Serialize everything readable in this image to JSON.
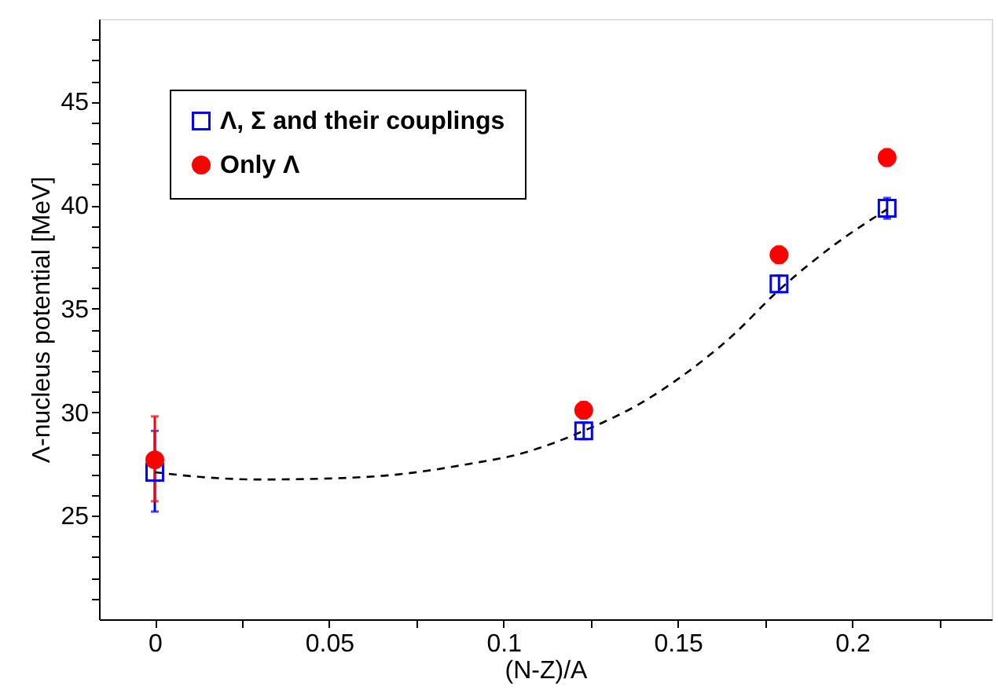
{
  "chart_data": {
    "type": "scatter",
    "xlabel": "(N-Z)/A",
    "ylabel": "Λ-nucleus potential [MeV]",
    "x": [
      0,
      0.123,
      0.179,
      0.21
    ],
    "series": [
      {
        "name": "Λ, Σ and their couplings",
        "color": "#0000ff",
        "marker": "square",
        "values": [
          27.1,
          29.1,
          36.2,
          39.85
        ],
        "errors": [
          [
            25.2,
            29.1
          ],
          0.4,
          0.4,
          0.5
        ]
      },
      {
        "name": "Only  Λ",
        "color": "#ff0000",
        "marker": "circle",
        "values": [
          27.7,
          30.1,
          37.6,
          42.3
        ],
        "errors": [
          [
            25.7,
            29.8
          ],
          0.4,
          0.4,
          0.4
        ]
      },
      {
        "type": "line",
        "color": "#000000",
        "line_style": "dashed",
        "marker": "none",
        "x": [
          0,
          0.015,
          0.03,
          0.05,
          0.07,
          0.09,
          0.105,
          0.123,
          0.14,
          0.15,
          0.165,
          0.179,
          0.195,
          0.21
        ],
        "values": [
          27.1,
          26.85,
          26.75,
          26.8,
          27.0,
          27.5,
          28.0,
          29.1,
          30.5,
          31.6,
          33.6,
          35.9,
          38.1,
          39.8
        ]
      }
    ],
    "xlim": [
      -0.016,
      0.24
    ],
    "ylim": [
      20,
      49
    ],
    "xticks": [
      0,
      {
        "value": 0.025,
        "label": null
      },
      0.05,
      {
        "value": 0.075,
        "label": null
      },
      0.1,
      {
        "value": 0.125,
        "label": null
      },
      0.15,
      {
        "value": 0.175,
        "label": null
      },
      0.2,
      {
        "value": 0.225,
        "label": null
      }
    ],
    "yticks": [
      {
        "value": 21,
        "label": null
      },
      {
        "value": 22,
        "label": null
      },
      {
        "value": 23,
        "label": null
      },
      {
        "value": 24,
        "label": null
      },
      25,
      {
        "value": 26,
        "label": null
      },
      {
        "value": 27,
        "label": null
      },
      {
        "value": 28,
        "label": null
      },
      {
        "value": 29,
        "label": null
      },
      30,
      {
        "value": 31,
        "label": null
      },
      {
        "value": 32,
        "label": null
      },
      {
        "value": 33,
        "label": null
      },
      {
        "value": 34,
        "label": null
      },
      35,
      {
        "value": 36,
        "label": null
      },
      {
        "value": 37,
        "label": null
      },
      {
        "value": 38,
        "label": null
      },
      {
        "value": 39,
        "label": null
      },
      40,
      {
        "value": 41,
        "label": null
      },
      {
        "value": 42,
        "label": null
      },
      {
        "value": 43,
        "label": null
      },
      {
        "value": 44,
        "label": null
      },
      45,
      {
        "value": 46,
        "label": null
      },
      {
        "value": 47,
        "label": null
      },
      {
        "value": 48,
        "label": null
      }
    ],
    "grid": false,
    "legend": "top left"
  }
}
